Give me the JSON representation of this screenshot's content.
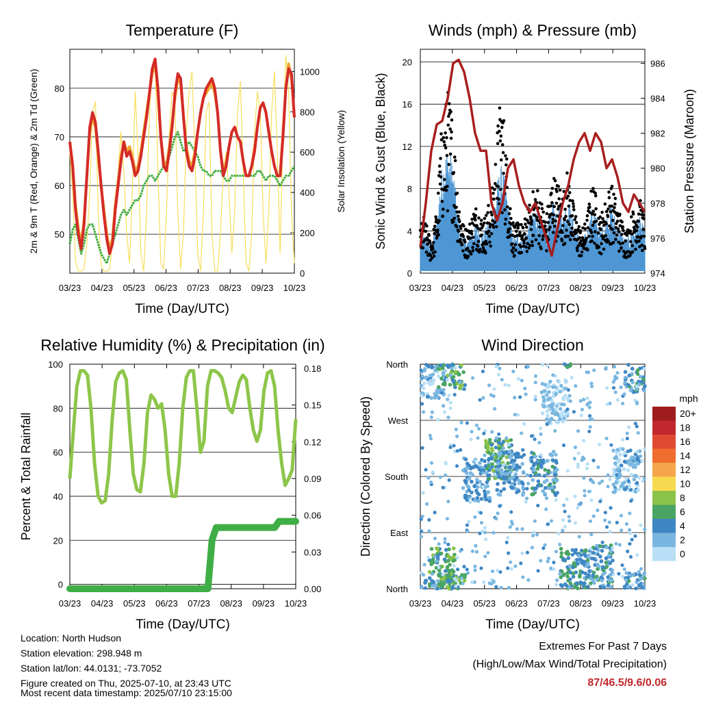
{
  "chart_data": [
    {
      "id": "temperature",
      "type": "line",
      "title": "Temperature (F)",
      "xlabel": "Time (Day/UTC)",
      "ylabel": "2m & 9m T (Red, Orange) & 2m Td (Green)",
      "ylabel_right": "Solar Insolation (Yellow)",
      "x_ticks": [
        "03/23",
        "04/23",
        "05/23",
        "06/23",
        "07/23",
        "08/23",
        "09/23",
        "10/23"
      ],
      "ylim": [
        42,
        88
      ],
      "y_ticks": [
        50,
        60,
        70,
        80
      ],
      "ylim_right": [
        0,
        1110
      ],
      "y_ticks_right": [
        0,
        200,
        400,
        600,
        800,
        1000
      ],
      "grid": true,
      "series": [
        {
          "color": "#d42a28",
          "axis": "left",
          "values": [
            69,
            64,
            55,
            50,
            47,
            52,
            62,
            72,
            75,
            73,
            67,
            60,
            54,
            49,
            46,
            48,
            55,
            60,
            65,
            69,
            66,
            67,
            65,
            62,
            63,
            66,
            70,
            74,
            79,
            84,
            86,
            80,
            70,
            64,
            63,
            67,
            72,
            79,
            83,
            82,
            74,
            67,
            64,
            63,
            66,
            71,
            75,
            78,
            80,
            81,
            82,
            80,
            75,
            67,
            62,
            64,
            68,
            71,
            72,
            70,
            69,
            65,
            62,
            62,
            64,
            67,
            72,
            76,
            77,
            75,
            71,
            67,
            64,
            62,
            62,
            70,
            80,
            84,
            83,
            74
          ]
        },
        {
          "color": "#f0a530",
          "axis": "left",
          "values": [
            69,
            64,
            56,
            51,
            48,
            53,
            62,
            71,
            74,
            72,
            66,
            60,
            55,
            50,
            47,
            49,
            56,
            61,
            66,
            69,
            67,
            68,
            66,
            63,
            64,
            67,
            71,
            75,
            79,
            83,
            85,
            79,
            70,
            65,
            64,
            68,
            73,
            78,
            82,
            81,
            74,
            68,
            65,
            64,
            67,
            71,
            75,
            78,
            79,
            80,
            81,
            79,
            75,
            67,
            63,
            65,
            68,
            71,
            72,
            70,
            69,
            65,
            62,
            62,
            64,
            68,
            72,
            76,
            77,
            75,
            71,
            67,
            64,
            62,
            62,
            71,
            80,
            85,
            82,
            74
          ]
        },
        {
          "color": "#3eaa3c",
          "axis": "left",
          "values": [
            48,
            51,
            52,
            49,
            46,
            48,
            51,
            52,
            52,
            50,
            48,
            46,
            45,
            44,
            46,
            48,
            50,
            52,
            54,
            55,
            54,
            55,
            56,
            57,
            57,
            58,
            60,
            61,
            62,
            62,
            61,
            62,
            63,
            64,
            65,
            66,
            68,
            70,
            71,
            69,
            67,
            68,
            69,
            68,
            67,
            66,
            64,
            63,
            63,
            62,
            62,
            63,
            63,
            63,
            62,
            61,
            61,
            62,
            62,
            62,
            62,
            62,
            62,
            62,
            62,
            62,
            63,
            63,
            62,
            61,
            62,
            62,
            62,
            61,
            60,
            61,
            62,
            62,
            63,
            64
          ]
        },
        {
          "color": "#f6de5a",
          "axis": "right",
          "values": [
            600,
            400,
            60,
            10,
            10,
            20,
            150,
            400,
            800,
            850,
            300,
            40,
            10,
            10,
            20,
            150,
            300,
            500,
            700,
            500,
            200,
            50,
            400,
            900,
            600,
            100,
            10,
            300,
            800,
            1000,
            1050,
            500,
            50,
            20,
            300,
            700,
            900,
            850,
            300,
            20,
            200,
            700,
            900,
            1000,
            600,
            100,
            10,
            300,
            800,
            850,
            200,
            10,
            10,
            200,
            500,
            600,
            400,
            100,
            300,
            800,
            950,
            500,
            50,
            10,
            200,
            700,
            900,
            800,
            300,
            50,
            300,
            800,
            1000,
            600,
            100,
            700,
            1080,
            900,
            300,
            50
          ]
        }
      ]
    },
    {
      "id": "winds",
      "type": "scatter",
      "title": "Winds (mph) & Pressure (mb)",
      "xlabel": "Time (Day/UTC)",
      "ylabel": "Sonic Wind & Gust (Blue, Black)",
      "ylabel_right": "Station Pressure (Maroon)",
      "x_ticks": [
        "03/23",
        "04/23",
        "05/23",
        "06/23",
        "07/23",
        "08/23",
        "09/23",
        "10/23"
      ],
      "ylim": [
        0,
        21.2
      ],
      "y_ticks": [
        0,
        4,
        8,
        12,
        16,
        20
      ],
      "ylim_right": [
        974,
        986.8
      ],
      "y_ticks_right": [
        974,
        976,
        978,
        980,
        982,
        984,
        986
      ],
      "grid": true,
      "gust_values": [
        4,
        5,
        4,
        3,
        4,
        6,
        12,
        14,
        16,
        15,
        12,
        8,
        5,
        4,
        4,
        5,
        6,
        6,
        5,
        5,
        6,
        7,
        10,
        14,
        16,
        12,
        8,
        5,
        4,
        5,
        4,
        5,
        6,
        7,
        8,
        7,
        6,
        5,
        7,
        9,
        8,
        8,
        7,
        9,
        8,
        6,
        5,
        4,
        4,
        5,
        7,
        8,
        6,
        5,
        6,
        7,
        8,
        7,
        6,
        5,
        4,
        4,
        5,
        6,
        7,
        6,
        5
      ],
      "wind_values": [
        1.5,
        2,
        2,
        1.5,
        2,
        3,
        5,
        6,
        6.5,
        6,
        5,
        3,
        2,
        1.8,
        1.8,
        2.2,
        2.5,
        2.5,
        2.2,
        2.2,
        2.6,
        3,
        4,
        5,
        5.5,
        4.5,
        3.5,
        2,
        1.8,
        2.2,
        1.8,
        2.2,
        2.6,
        3,
        3.5,
        3,
        2.6,
        2.2,
        3,
        3.8,
        3.5,
        3.5,
        3,
        3.8,
        3.5,
        2.6,
        2.2,
        1.8,
        1.8,
        2.2,
        3,
        3.5,
        2.6,
        2.2,
        2.6,
        3,
        3.5,
        3,
        2.6,
        2.2,
        1.8,
        1.8,
        2.2,
        2.6,
        3,
        2.6,
        2.2
      ],
      "pressure_values": [
        975.5,
        978,
        981,
        982.5,
        982.7,
        984,
        986,
        986.2,
        985.5,
        984,
        982,
        981,
        981,
        978,
        977,
        978,
        980,
        980.5,
        979,
        978,
        977.5,
        978,
        977,
        976,
        975,
        976.5,
        978,
        979,
        980.5,
        981.5,
        982,
        981,
        982,
        981.5,
        980,
        980.5,
        979.5,
        978,
        977.5,
        978.5,
        978,
        977.5
      ]
    },
    {
      "id": "humidity",
      "type": "line",
      "title": "Relative Humidity (%) & Precipitation (in)",
      "xlabel": "Time (Day/UTC)",
      "ylabel": "Percent & Total Rainfall",
      "x_ticks": [
        "03/23",
        "04/23",
        "05/23",
        "06/23",
        "07/23",
        "08/23",
        "09/23",
        "10/23"
      ],
      "ylim": [
        -2,
        100
      ],
      "y_ticks": [
        0,
        20,
        40,
        60,
        80,
        100
      ],
      "ylim_right": [
        0,
        0.18
      ],
      "y_ticks_right": [
        "0.00",
        "0.03",
        "0.06",
        "0.09",
        "0.12",
        "0.15",
        "0.18"
      ],
      "grid": true,
      "rh_values": [
        48,
        70,
        90,
        97,
        97,
        95,
        80,
        55,
        40,
        37,
        38,
        50,
        75,
        92,
        96,
        97,
        93,
        70,
        50,
        43,
        42,
        55,
        78,
        86,
        84,
        80,
        82,
        70,
        50,
        40,
        40,
        55,
        80,
        94,
        97,
        97,
        80,
        60,
        65,
        90,
        97,
        97,
        96,
        94,
        88,
        80,
        78,
        85,
        92,
        95,
        93,
        80,
        70,
        65,
        70,
        88,
        96,
        97,
        90,
        70,
        55,
        45,
        48,
        52,
        75
      ],
      "precip_total": [
        0,
        0,
        0,
        0,
        0,
        0,
        0,
        0,
        0,
        0,
        0,
        0,
        0,
        0,
        0,
        0,
        0,
        0,
        0,
        0,
        0,
        0,
        0,
        0,
        0,
        0,
        0,
        0,
        0,
        0,
        0,
        0,
        0,
        0,
        0.04,
        0.05,
        0.05,
        0.05,
        0.05,
        0.05,
        0.05,
        0.05,
        0.05,
        0.05,
        0.05,
        0.05,
        0.05,
        0.05,
        0.05,
        0.05,
        0.055,
        0.055,
        0.055,
        0.055,
        0.055
      ]
    },
    {
      "id": "wind_direction",
      "type": "scatter",
      "title": "Wind Direction",
      "xlabel": "Time (Day/UTC)",
      "ylabel": "Direction (Colored By Speed)",
      "x_ticks": [
        "03/23",
        "04/23",
        "05/23",
        "06/23",
        "07/23",
        "08/23",
        "09/23",
        "10/23"
      ],
      "y_ticks": [
        "North",
        "East",
        "South",
        "West",
        "North"
      ],
      "ylim": [
        0,
        360
      ],
      "grid": true,
      "legend": {
        "title": "mph",
        "placement": "right",
        "labels": [
          "20+",
          "18",
          "16",
          "14",
          "12",
          "10",
          "8",
          "6",
          "4",
          "2",
          "0"
        ],
        "colors": [
          "#9e1b1e",
          "#c0282d",
          "#e04a32",
          "#ef6d2d",
          "#f5a64a",
          "#f6d94e",
          "#8bc34a",
          "#4aa564",
          "#3f87c4",
          "#7ab7e0",
          "#b8dff5"
        ]
      },
      "clusters": [
        {
          "t": 0.1,
          "dir": 30,
          "spd": 6
        },
        {
          "t": 0.05,
          "dir": 340,
          "spd": 2
        },
        {
          "t": 0.14,
          "dir": 355,
          "spd": 6
        },
        {
          "t": 0.25,
          "dir": 175,
          "spd": 3
        },
        {
          "t": 0.35,
          "dir": 205,
          "spd": 6
        },
        {
          "t": 0.4,
          "dir": 185,
          "spd": 3
        },
        {
          "t": 0.55,
          "dir": 185,
          "spd": 4
        },
        {
          "t": 0.68,
          "dir": 30,
          "spd": 5
        },
        {
          "t": 0.8,
          "dir": 35,
          "spd": 4
        },
        {
          "t": 0.92,
          "dir": 190,
          "spd": 2
        },
        {
          "t": 0.97,
          "dir": 350,
          "spd": 4
        },
        {
          "t": 0.6,
          "dir": 300,
          "spd": 1
        }
      ]
    }
  ],
  "info": {
    "location": "Location: North Hudson",
    "elevation": "Station elevation: 298.948 m",
    "latlon": "Station lat/lon: 44.0131; -73.7052",
    "created": "Figure created on Thu, 2025-07-10, at 23:43 UTC",
    "recent": "Most recent data timestamp: 2025/07/10 23:15:00"
  },
  "extremes": {
    "line1": "Extremes For Past 7 Days",
    "line2": "(High/Low/Max Wind/Total Precipitation)",
    "values": "87/46.5/9.6/0.06"
  }
}
